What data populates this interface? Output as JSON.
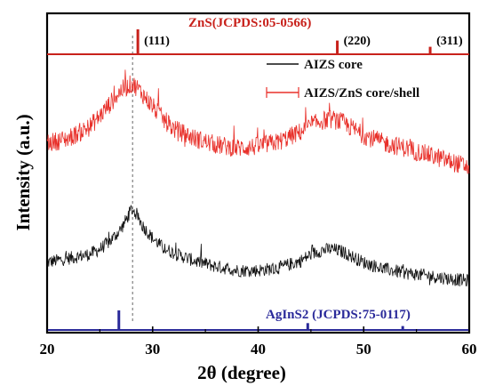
{
  "chart_data": {
    "type": "line",
    "xlabel": "2θ (degree)",
    "ylabel": "Intensity (a.u.)",
    "xlim": [
      20,
      60
    ],
    "x_ticks": [
      "20",
      "30",
      "40",
      "50",
      "60"
    ],
    "grid": false,
    "legend_position": "top-right",
    "colors": {
      "core": "#111111",
      "shell": "#e8302a",
      "znsRef": "#c8221c",
      "agRef": "#2a2a9a",
      "dashed": "#666666"
    },
    "series": [
      {
        "name": "AIZS core",
        "color": "#111111",
        "x": [
          20,
          22,
          24,
          25,
          26,
          27,
          27.5,
          28,
          28.5,
          29,
          30,
          31,
          32,
          34,
          36,
          38,
          40,
          42,
          44,
          45,
          46,
          47,
          48,
          49,
          50,
          52,
          54,
          56,
          58,
          60
        ],
        "y": [
          0.3,
          0.33,
          0.36,
          0.4,
          0.46,
          0.55,
          0.62,
          0.7,
          0.66,
          0.58,
          0.48,
          0.41,
          0.37,
          0.31,
          0.27,
          0.24,
          0.24,
          0.26,
          0.31,
          0.36,
          0.39,
          0.4,
          0.38,
          0.34,
          0.3,
          0.25,
          0.22,
          0.2,
          0.18,
          0.16
        ],
        "noise": 0.05
      },
      {
        "name": "AIZS/ZnS core/shell",
        "color": "#e8302a",
        "x": [
          20,
          22,
          24,
          25,
          26,
          27,
          28,
          28.5,
          29,
          30,
          31,
          32,
          34,
          36,
          38,
          40,
          42,
          44,
          45,
          46,
          47,
          48,
          49,
          50,
          52,
          54,
          56,
          58,
          60
        ],
        "y": [
          0.55,
          0.58,
          0.65,
          0.72,
          0.8,
          0.88,
          0.92,
          0.9,
          0.86,
          0.78,
          0.7,
          0.64,
          0.58,
          0.54,
          0.52,
          0.53,
          0.56,
          0.62,
          0.66,
          0.69,
          0.7,
          0.68,
          0.64,
          0.6,
          0.55,
          0.52,
          0.48,
          0.44,
          0.4
        ],
        "noise": 0.06
      }
    ],
    "references": [
      {
        "label": "ZnS(JCPDS:05-0566)",
        "color": "#c8221c",
        "lines": [
          {
            "x": 28.6,
            "height": 1.0,
            "label": "(111)"
          },
          {
            "x": 47.5,
            "height": 0.55,
            "label": "(220)"
          },
          {
            "x": 56.3,
            "height": 0.3,
            "label": "(311)"
          }
        ]
      },
      {
        "label": "AgInS2 (JCPDS:75-0117)",
        "color": "#2a2a9a",
        "lines": [
          {
            "x": 26.8,
            "height": 1.0
          },
          {
            "x": 44.7,
            "height": 0.35
          },
          {
            "x": 53.7,
            "height": 0.2
          }
        ]
      }
    ],
    "dashed_guide_x": 28.1
  }
}
